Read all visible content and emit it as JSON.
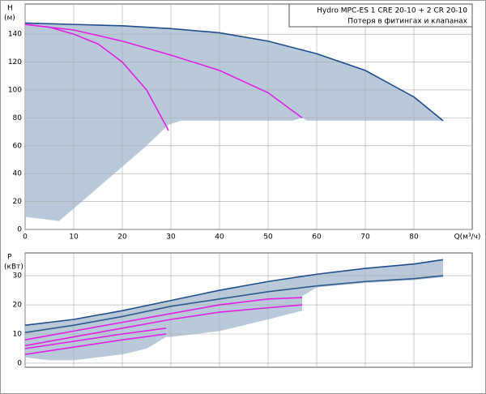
{
  "chart_data": [
    {
      "type": "line",
      "ylabel": "H",
      "yunit": "(м)",
      "xlabel": "Q(м³/ч)",
      "legend_title": "Hydro MPC-ES 1 CRE 20-10  +  2 CR 20-10",
      "legend_note": "Потеря в фитингах и клапанах",
      "xlim": [
        0,
        92
      ],
      "ylim": [
        0,
        161.6
      ],
      "xticks": [
        0,
        10,
        20,
        30,
        40,
        50,
        60,
        70,
        80
      ],
      "yticks": [
        0,
        20,
        40,
        60,
        80,
        100,
        120,
        140
      ],
      "grid": true,
      "areas": [
        {
          "color": "#b9c9da",
          "x": [
            0,
            10,
            20,
            30,
            40,
            50,
            60,
            70,
            80,
            86,
            76,
            58,
            57,
            55,
            45,
            32,
            29.5,
            25,
            20,
            15,
            10,
            7,
            0
          ],
          "values": [
            148,
            147,
            146,
            144,
            141,
            135,
            126,
            114,
            95,
            78,
            78,
            78,
            80,
            78,
            78,
            78,
            75,
            60,
            45,
            30,
            15,
            6,
            9
          ]
        }
      ],
      "series": [
        {
          "color": "#1f4e8c",
          "x": [
            0,
            10,
            20,
            30,
            40,
            50,
            60,
            70,
            80,
            86
          ],
          "values": [
            148,
            147,
            146,
            144,
            141,
            135,
            126,
            114,
            95,
            78
          ]
        },
        {
          "color": "#e020e0",
          "x": [
            0,
            10,
            20,
            30,
            40,
            50,
            57
          ],
          "values": [
            147,
            143,
            135,
            125,
            114,
            98,
            80
          ]
        },
        {
          "color": "#e020e0",
          "x": [
            0,
            5,
            10,
            15,
            20,
            25,
            29.5
          ],
          "values": [
            147,
            145,
            140,
            133,
            120,
            100,
            71
          ]
        }
      ]
    },
    {
      "type": "line",
      "ylabel": "P",
      "yunit": "(кВт)",
      "xlim": [
        0,
        92
      ],
      "ylim": [
        -1.4,
        37.8
      ],
      "xticks": [
        0,
        10,
        20,
        30,
        40,
        50,
        60,
        70,
        80
      ],
      "yticks": [
        0,
        10,
        20,
        30
      ],
      "grid": true,
      "areas": [
        {
          "color": "#b9c9da",
          "x": [
            0,
            10,
            20,
            30,
            40,
            50,
            60,
            70,
            80,
            86,
            86,
            80,
            70,
            60,
            57,
            57,
            50,
            40,
            30,
            29,
            25,
            20,
            15,
            10,
            5,
            0
          ],
          "values": [
            13,
            15,
            18,
            21.5,
            25,
            28,
            30.5,
            32.5,
            34,
            35.5,
            29.5,
            28.5,
            27.5,
            26,
            23,
            18,
            15,
            11,
            9,
            9,
            5,
            3,
            2,
            1,
            1,
            2
          ]
        }
      ],
      "series": [
        {
          "color": "#1f4e8c",
          "x": [
            0,
            10,
            20,
            30,
            40,
            50,
            60,
            70,
            80,
            86
          ],
          "values": [
            13,
            15,
            18,
            21.5,
            25,
            28,
            30.5,
            32.5,
            34,
            35.5
          ]
        },
        {
          "color": "#2d5a8c",
          "x": [
            0,
            10,
            20,
            30,
            40,
            50,
            60,
            70,
            80,
            86
          ],
          "values": [
            10.5,
            13,
            16,
            19.5,
            22,
            24.5,
            26.5,
            28,
            29,
            30
          ]
        },
        {
          "color": "#e020e0",
          "x": [
            0,
            10,
            20,
            30,
            40,
            50,
            57
          ],
          "values": [
            8,
            11,
            14,
            17,
            20,
            22,
            22.5
          ]
        },
        {
          "color": "#e020e0",
          "x": [
            0,
            10,
            20,
            30,
            40,
            50,
            57
          ],
          "values": [
            6,
            9,
            12,
            15,
            17.5,
            19,
            20
          ]
        },
        {
          "color": "#e020e0",
          "x": [
            0,
            10,
            20,
            29
          ],
          "values": [
            5,
            7.5,
            10,
            12
          ]
        },
        {
          "color": "#e020e0",
          "x": [
            0,
            10,
            20,
            29
          ],
          "values": [
            3,
            5.5,
            8,
            10
          ]
        }
      ]
    }
  ]
}
